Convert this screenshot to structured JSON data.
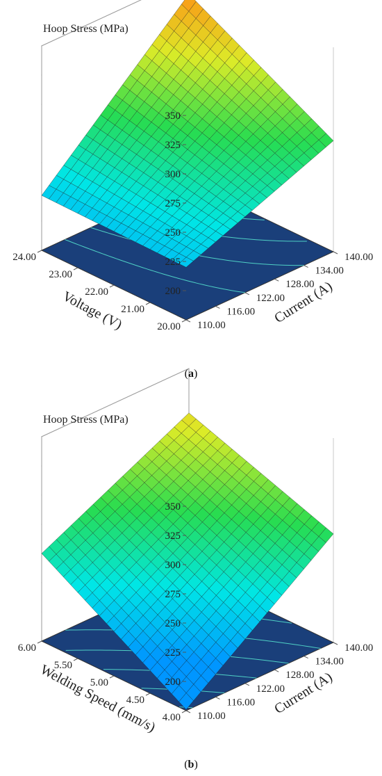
{
  "chart_data": [
    {
      "type": "surface3d",
      "panel": "a",
      "caption_paren_left": "(",
      "caption_letter": "a",
      "caption_paren_right": ")",
      "ztitle": "Hoop Stress (MPa)",
      "zlim": [
        175,
        350
      ],
      "zticks": [
        "200",
        "225",
        "250",
        "275",
        "300",
        "325",
        "350"
      ],
      "x_axis_label": "Current (A)",
      "x_ticks": [
        "110.00",
        "116.00",
        "122.00",
        "128.00",
        "134.00",
        "140.00"
      ],
      "y_axis_label": "Voltage (V)",
      "y_ticks": [
        "20.00",
        "21.00",
        "22.00",
        "23.00",
        "24.00"
      ],
      "corner_values": {
        "x_min_y_min": 220,
        "x_max_y_min": 270,
        "x_min_y_max": 222,
        "x_max_y_max": 336
      },
      "colors": {
        "floor": "#1a3f7a",
        "contour": "#4fd1c5"
      }
    },
    {
      "type": "surface3d",
      "panel": "b",
      "caption_paren_left": "(",
      "caption_letter": "b",
      "caption_paren_right": ")",
      "ztitle": "Hoop Stress (MPa)",
      "zlim": [
        175,
        350
      ],
      "zticks": [
        "200",
        "225",
        "250",
        "275",
        "300",
        "325",
        "350"
      ],
      "x_axis_label": "Current (A)",
      "x_ticks": [
        "110.00",
        "116.00",
        "122.00",
        "128.00",
        "134.00",
        "140.00"
      ],
      "y_axis_label": "Welding Speed (mm/s)",
      "y_ticks": [
        "4.00",
        "4.50",
        "5.00",
        "5.50",
        "6.00"
      ],
      "corner_values": {
        "x_min_y_min": 176,
        "x_max_y_min": 268,
        "x_min_y_max": 250,
        "x_max_y_max": 312
      },
      "colors": {
        "floor": "#1a3f7a",
        "contour": "#4fd1c5"
      }
    }
  ]
}
